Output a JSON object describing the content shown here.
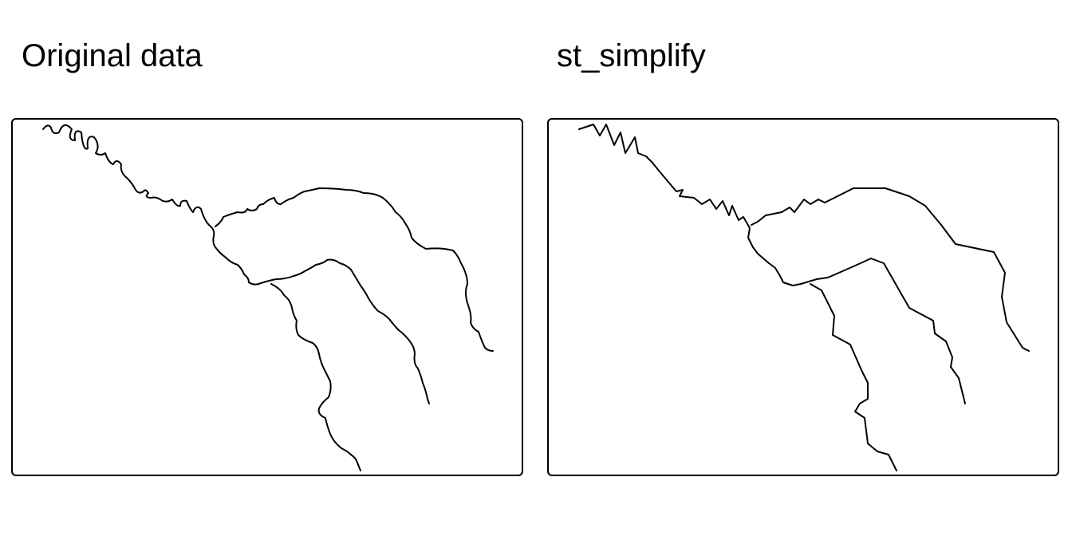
{
  "panels": [
    {
      "title": "Original data"
    },
    {
      "title": "st_simplify"
    }
  ]
}
